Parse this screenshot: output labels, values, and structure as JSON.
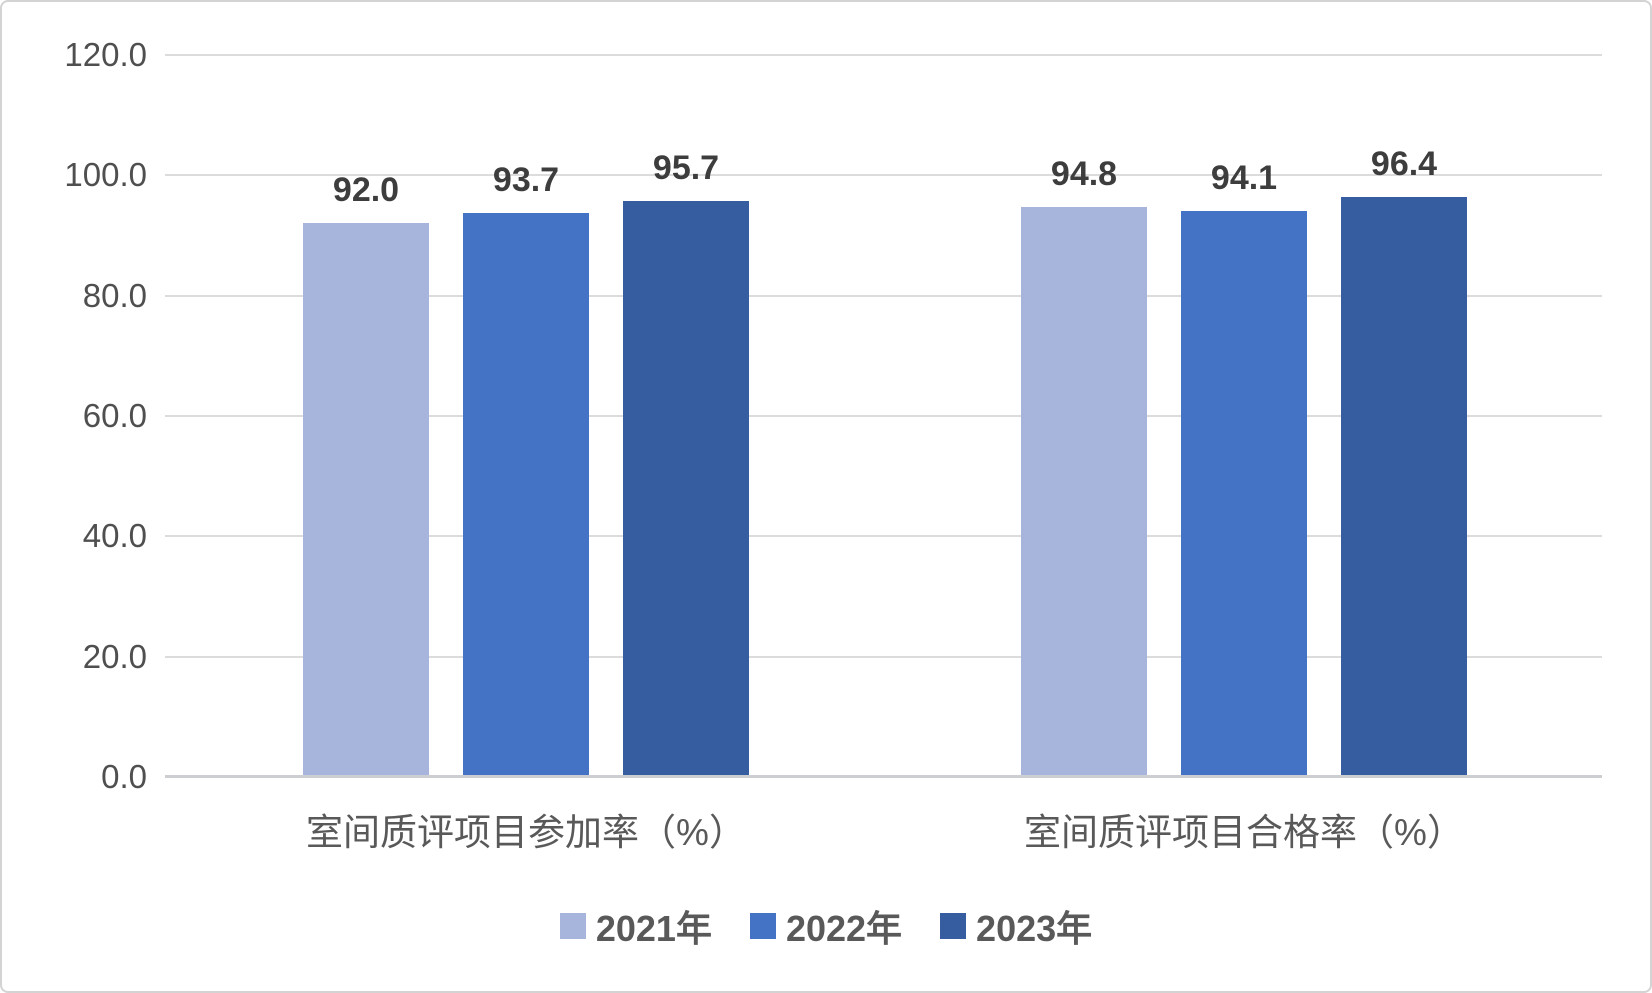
{
  "chart_data": {
    "type": "bar",
    "categories": [
      "室间质评项目参加率（%）",
      "室间质评项目合格率（%）"
    ],
    "series": [
      {
        "name": "2021年",
        "color": "#a7b5dc",
        "values": [
          92.0,
          94.8
        ]
      },
      {
        "name": "2022年",
        "color": "#4472c4",
        "values": [
          93.7,
          94.1
        ]
      },
      {
        "name": "2023年",
        "color": "#365d9f",
        "values": [
          95.7,
          96.4
        ]
      }
    ],
    "value_labels": [
      [
        "92.0",
        "94.8"
      ],
      [
        "93.7",
        "94.1"
      ],
      [
        "95.7",
        "96.4"
      ]
    ],
    "ylim": [
      0,
      120
    ],
    "ytick_values": [
      0,
      20,
      40,
      60,
      80,
      100,
      120
    ],
    "ytick_labels": [
      "0.0",
      "20.0",
      "40.0",
      "60.0",
      "80.0",
      "100.0",
      "120.0"
    ],
    "grid": true,
    "legend_position": "bottom"
  },
  "colors": {
    "gridline": "#dcdcdc",
    "axis_line": "#cdced1",
    "tick_text": "#4f4f4f",
    "category_text": "#595959",
    "value_text": "#3d3d3d",
    "legend_text": "#595959",
    "background": "#ffffff",
    "border": "#d3d3d3"
  }
}
